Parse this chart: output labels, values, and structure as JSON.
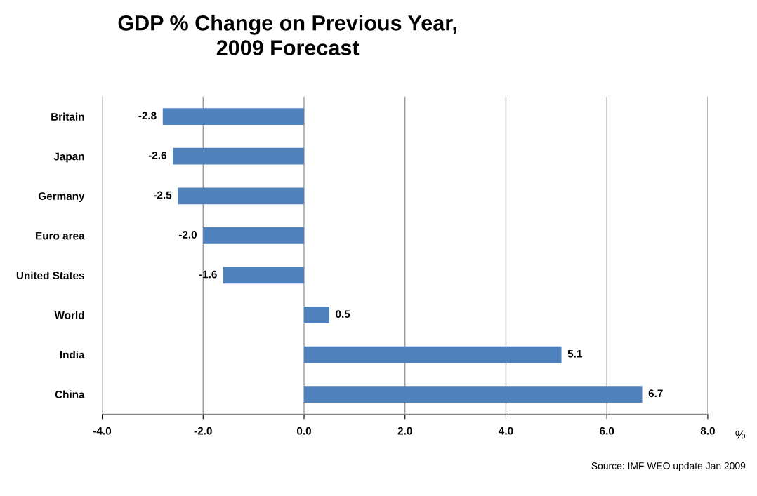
{
  "chart_data": {
    "type": "bar",
    "orientation": "horizontal",
    "title": "GDP % Change on Previous Year,\n2009 Forecast",
    "categories": [
      "Britain",
      "Japan",
      "Germany",
      "Euro area",
      "United States",
      "World",
      "India",
      "China"
    ],
    "values": [
      -2.8,
      -2.6,
      -2.5,
      -2.0,
      -1.6,
      0.5,
      5.1,
      6.7
    ],
    "value_labels": [
      "-2.8",
      "-2.6",
      "-2.5",
      "-2.0",
      "-1.6",
      "0.5",
      "5.1",
      "6.7"
    ],
    "color": "#4f81bd",
    "xlabel": "%",
    "xlim": [
      -4,
      8
    ],
    "xticks": [
      {
        "value": -4,
        "label": "-4.0"
      },
      {
        "value": -2,
        "label": "-2.0"
      },
      {
        "value": 0,
        "label": "0.0"
      },
      {
        "value": 2,
        "label": "2.0"
      },
      {
        "value": 4,
        "label": "4.0"
      },
      {
        "value": 6,
        "label": "6.0"
      },
      {
        "value": 8,
        "label": "8.0"
      }
    ],
    "grid": "x",
    "annotations": [
      "Source: IMF WEO update Jan 2009"
    ]
  }
}
